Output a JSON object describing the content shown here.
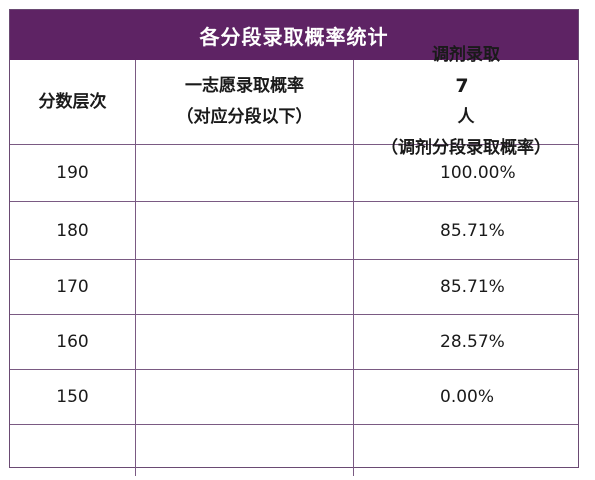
{
  "title": "各分段录取概率统计",
  "headers": {
    "col1": "分数层次",
    "col2_line1": "一志愿录取概率",
    "col2_line2": "（对应分段以下）",
    "col3_prefix": "调剂录取",
    "col3_count": "7",
    "col3_unit": "人",
    "col3_line2": "（调剂分段录取概率）"
  },
  "rows": [
    {
      "score": "190",
      "first_choice": "",
      "adjust": "100.00%"
    },
    {
      "score": "180",
      "first_choice": "",
      "adjust": "85.71%"
    },
    {
      "score": "170",
      "first_choice": "",
      "adjust": "85.71%"
    },
    {
      "score": "160",
      "first_choice": "",
      "adjust": "28.57%"
    },
    {
      "score": "150",
      "first_choice": "",
      "adjust": "0.00%"
    },
    {
      "score": "",
      "first_choice": "",
      "adjust": ""
    }
  ],
  "colors": {
    "title_bg": "#5e2364",
    "title_text": "#ffffff",
    "border": "#7a5a83"
  }
}
